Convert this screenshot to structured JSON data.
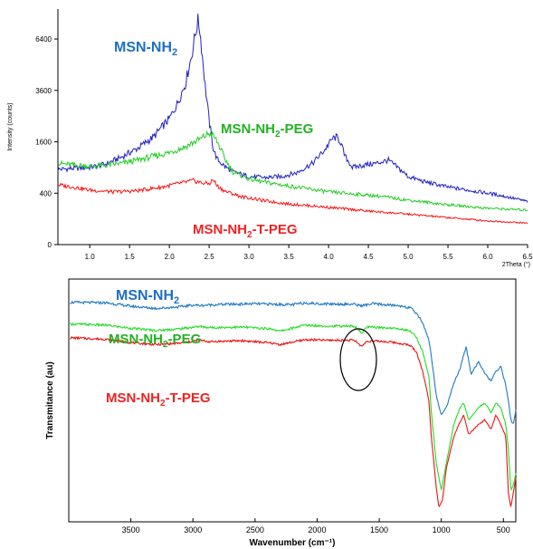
{
  "chart_data": [
    {
      "type": "line",
      "title": "",
      "xlabel": "2Theta (°)",
      "ylabel": "Intensity (counts)",
      "xlim": [
        0.6,
        6.5
      ],
      "ylim": [
        0,
        8400
      ],
      "y_scale": "sqrt",
      "x_ticks": [
        "1.0",
        "1.5",
        "2.0",
        "2.5",
        "3.0",
        "3.5",
        "4.0",
        "4.5",
        "5.0",
        "5.5",
        "6.0",
        "6.5"
      ],
      "y_ticks": [
        "0",
        "400",
        "1600",
        "3600",
        "6400"
      ],
      "grid": false,
      "legend": "inline labels",
      "series": [
        {
          "name": "MSN-NH₂",
          "color": "#1f1fc8",
          "label_color": "#1f6fc0",
          "x": [
            0.6,
            0.8,
            1.0,
            1.2,
            1.4,
            1.6,
            1.8,
            2.0,
            2.1,
            2.2,
            2.28,
            2.33,
            2.36,
            2.38,
            2.41,
            2.45,
            2.5,
            2.55,
            2.6,
            2.7,
            2.8,
            3.0,
            3.2,
            3.4,
            3.6,
            3.8,
            3.95,
            4.05,
            4.1,
            4.15,
            4.2,
            4.3,
            4.45,
            4.6,
            4.75,
            4.8,
            4.9,
            5.0,
            5.2,
            5.5,
            5.8,
            6.1,
            6.5
          ],
          "y": [
            860,
            880,
            900,
            980,
            1160,
            1400,
            1750,
            2400,
            3000,
            3900,
            5400,
            6800,
            7600,
            7100,
            5600,
            3800,
            2300,
            1400,
            1100,
            920,
            800,
            700,
            680,
            700,
            780,
            1000,
            1350,
            1700,
            1750,
            1600,
            1200,
            900,
            960,
            1000,
            1080,
            1000,
            850,
            700,
            600,
            500,
            440,
            380,
            280
          ]
        },
        {
          "name": "MSN-NH₂-PEG",
          "color": "#22cc22",
          "label_color": "#22b022",
          "x": [
            0.6,
            0.8,
            1.0,
            1.2,
            1.4,
            1.6,
            1.8,
            2.0,
            2.2,
            2.4,
            2.5,
            2.55,
            2.6,
            2.7,
            2.8,
            3.0,
            3.2,
            3.5,
            3.8,
            4.0,
            4.3,
            4.6,
            5.0,
            5.5,
            6.0,
            6.5
          ],
          "y": [
            1000,
            960,
            930,
            950,
            1000,
            1080,
            1180,
            1280,
            1450,
            1700,
            1880,
            1800,
            1600,
            1100,
            800,
            650,
            590,
            520,
            460,
            420,
            390,
            360,
            300,
            240,
            200,
            180
          ]
        },
        {
          "name": "MSN-NH₂-T-PEG",
          "color": "#ff1010",
          "label_color": "#ee2222",
          "x": [
            0.6,
            0.8,
            1.0,
            1.3,
            1.6,
            1.9,
            2.1,
            2.3,
            2.4,
            2.5,
            2.55,
            2.6,
            2.7,
            2.9,
            3.2,
            3.5,
            4.0,
            4.5,
            5.0,
            5.5,
            6.0,
            6.5
          ],
          "y": [
            540,
            500,
            450,
            420,
            440,
            500,
            560,
            620,
            580,
            560,
            640,
            520,
            430,
            350,
            290,
            250,
            210,
            170,
            140,
            110,
            85,
            70
          ]
        }
      ]
    },
    {
      "type": "line",
      "title": "",
      "xlabel": "Wavenumber (cm⁻¹)",
      "ylabel": "Transmitance (au)",
      "xlim": [
        4000,
        400
      ],
      "x_reversed": true,
      "x_ticks": [
        "3500",
        "3000",
        "2500",
        "2000",
        "1500",
        "1000",
        "500"
      ],
      "ylim": [
        0,
        100
      ],
      "y_ticks": [],
      "grid": false,
      "legend": "inline labels",
      "annotation": "ellipse around ~1640 cm⁻¹ band",
      "series": [
        {
          "name": "MSN-NH₂",
          "color": "#1f78c4",
          "label_color": "#1f6fc0",
          "x": [
            3990,
            3700,
            3500,
            3300,
            3100,
            3000,
            2950,
            2800,
            2500,
            2360,
            2200,
            2100,
            2000,
            1800,
            1700,
            1640,
            1550,
            1400,
            1300,
            1250,
            1200,
            1150,
            1100,
            1080,
            1040,
            1000,
            960,
            900,
            850,
            800,
            760,
            700,
            650,
            600,
            560,
            520,
            480,
            460,
            440,
            420,
            400
          ],
          "y": [
            90.4,
            90.2,
            88.8,
            87.9,
            88.6,
            89.3,
            89.1,
            89.5,
            89.8,
            89.6,
            89.4,
            90.2,
            89.8,
            89.7,
            89.6,
            89.0,
            89.8,
            89.2,
            88.8,
            88.0,
            86.0,
            82.0,
            75.0,
            68.0,
            52.0,
            44.0,
            47.0,
            57.0,
            63.0,
            72.0,
            61.0,
            66.0,
            61.0,
            58.0,
            62.0,
            64.0,
            56.0,
            50.0,
            42.0,
            40.0,
            46.0
          ]
        },
        {
          "name": "MSN-NH₂-PEG",
          "color": "#22dd22",
          "label_color": "#22b022",
          "x": [
            3990,
            3700,
            3500,
            3300,
            3100,
            2950,
            2870,
            2600,
            2360,
            2300,
            2100,
            1900,
            1700,
            1640,
            1600,
            1500,
            1400,
            1300,
            1250,
            1200,
            1150,
            1100,
            1080,
            1040,
            1000,
            960,
            900,
            850,
            820,
            780,
            700,
            650,
            600,
            560,
            520,
            480,
            460,
            440,
            420,
            400
          ],
          "y": [
            81.5,
            81.0,
            79.7,
            78.8,
            79.5,
            80.5,
            80.0,
            80.2,
            79.4,
            78.5,
            81.0,
            80.6,
            80.6,
            77.8,
            80.2,
            80.0,
            79.8,
            79.2,
            78.5,
            76.0,
            70.0,
            60.0,
            45.0,
            24.0,
            13.0,
            24.0,
            40.0,
            47.0,
            49.0,
            42.0,
            47.0,
            49.0,
            45.0,
            49.0,
            47.0,
            40.0,
            30.0,
            13.0,
            15.0,
            20.0
          ]
        },
        {
          "name": "MSN-NH₂-T-PEG",
          "color": "#ee1111",
          "label_color": "#ee2222",
          "x": [
            3990,
            3700,
            3500,
            3300,
            3100,
            2950,
            2870,
            2600,
            2360,
            2300,
            2100,
            1900,
            1700,
            1640,
            1600,
            1500,
            1400,
            1300,
            1250,
            1200,
            1150,
            1100,
            1080,
            1040,
            1020,
            990,
            960,
            900,
            850,
            820,
            780,
            700,
            650,
            600,
            560,
            520,
            480,
            460,
            440,
            420,
            400
          ],
          "y": [
            75.8,
            75.2,
            73.8,
            73.0,
            73.6,
            74.8,
            74.2,
            74.6,
            73.6,
            73.0,
            75.0,
            74.8,
            74.8,
            72.2,
            74.4,
            74.4,
            74.0,
            73.2,
            72.6,
            70.0,
            62.0,
            50.0,
            35.0,
            14.0,
            6.0,
            9.0,
            22.0,
            35.0,
            41.0,
            44.0,
            36.0,
            40.0,
            42.0,
            38.0,
            44.0,
            40.0,
            35.0,
            12.0,
            6.0,
            12.0,
            18.0
          ]
        }
      ]
    }
  ]
}
